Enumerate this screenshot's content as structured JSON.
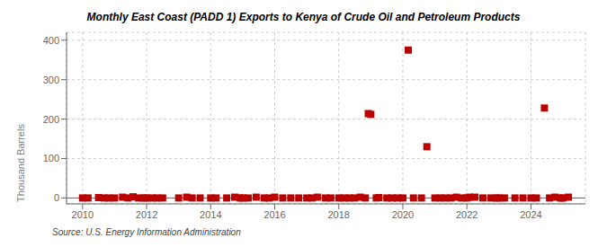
{
  "chart_data": {
    "type": "scatter",
    "title": "Monthly East Coast (PADD 1) Exports to Kenya of Crude Oil and Petroleum Products",
    "ylabel": "Thousand Barrels",
    "annotations": [
      "Source: U.S. Energy Information Administration"
    ],
    "color": "#bb0000",
    "marker": "square",
    "grid": true,
    "xlim": [
      2009.5,
      2025.7
    ],
    "ylim": [
      -15,
      420
    ],
    "xticks": [
      2010,
      2012,
      2014,
      2016,
      2018,
      2020,
      2022,
      2024
    ],
    "yticks": [
      0,
      100,
      200,
      300,
      400
    ],
    "x": [
      2010.0,
      2010.17,
      2010.5,
      2010.67,
      2010.83,
      2011.0,
      2011.25,
      2011.42,
      2011.58,
      2011.75,
      2011.92,
      2012.0,
      2012.17,
      2012.33,
      2012.5,
      2013.0,
      2013.25,
      2013.42,
      2013.67,
      2014.0,
      2014.17,
      2014.5,
      2014.75,
      2014.92,
      2015.0,
      2015.17,
      2015.42,
      2015.67,
      2015.83,
      2016.0,
      2016.25,
      2016.5,
      2016.75,
      2017.0,
      2017.17,
      2017.33,
      2017.58,
      2017.75,
      2018.0,
      2018.17,
      2018.33,
      2018.5,
      2018.67,
      2018.83,
      2018.92,
      2019.0,
      2019.17,
      2019.25,
      2019.5,
      2019.67,
      2019.83,
      2020.0,
      2020.17,
      2020.33,
      2020.58,
      2020.75,
      2021.0,
      2021.17,
      2021.33,
      2021.5,
      2021.67,
      2021.83,
      2022.0,
      2022.08,
      2022.25,
      2022.5,
      2022.75,
      2022.92,
      2023.0,
      2023.17,
      2023.5,
      2023.75,
      2024.0,
      2024.17,
      2024.42,
      2024.58,
      2024.75,
      2024.92,
      2025.0,
      2025.17
    ],
    "values": [
      0,
      0,
      1,
      0,
      0,
      0,
      2,
      0,
      3,
      0,
      0,
      0,
      0,
      0,
      0,
      0,
      2,
      0,
      0,
      0,
      0,
      0,
      2,
      0,
      0,
      0,
      2,
      0,
      0,
      2,
      0,
      0,
      0,
      0,
      0,
      2,
      0,
      0,
      0,
      0,
      0,
      0,
      2,
      0,
      214,
      212,
      0,
      1,
      0,
      0,
      0,
      0,
      375,
      0,
      0,
      130,
      0,
      0,
      0,
      0,
      2,
      0,
      0,
      2,
      2,
      0,
      0,
      0,
      0,
      0,
      0,
      0,
      0,
      0,
      228,
      0,
      2,
      0,
      0,
      2
    ]
  }
}
